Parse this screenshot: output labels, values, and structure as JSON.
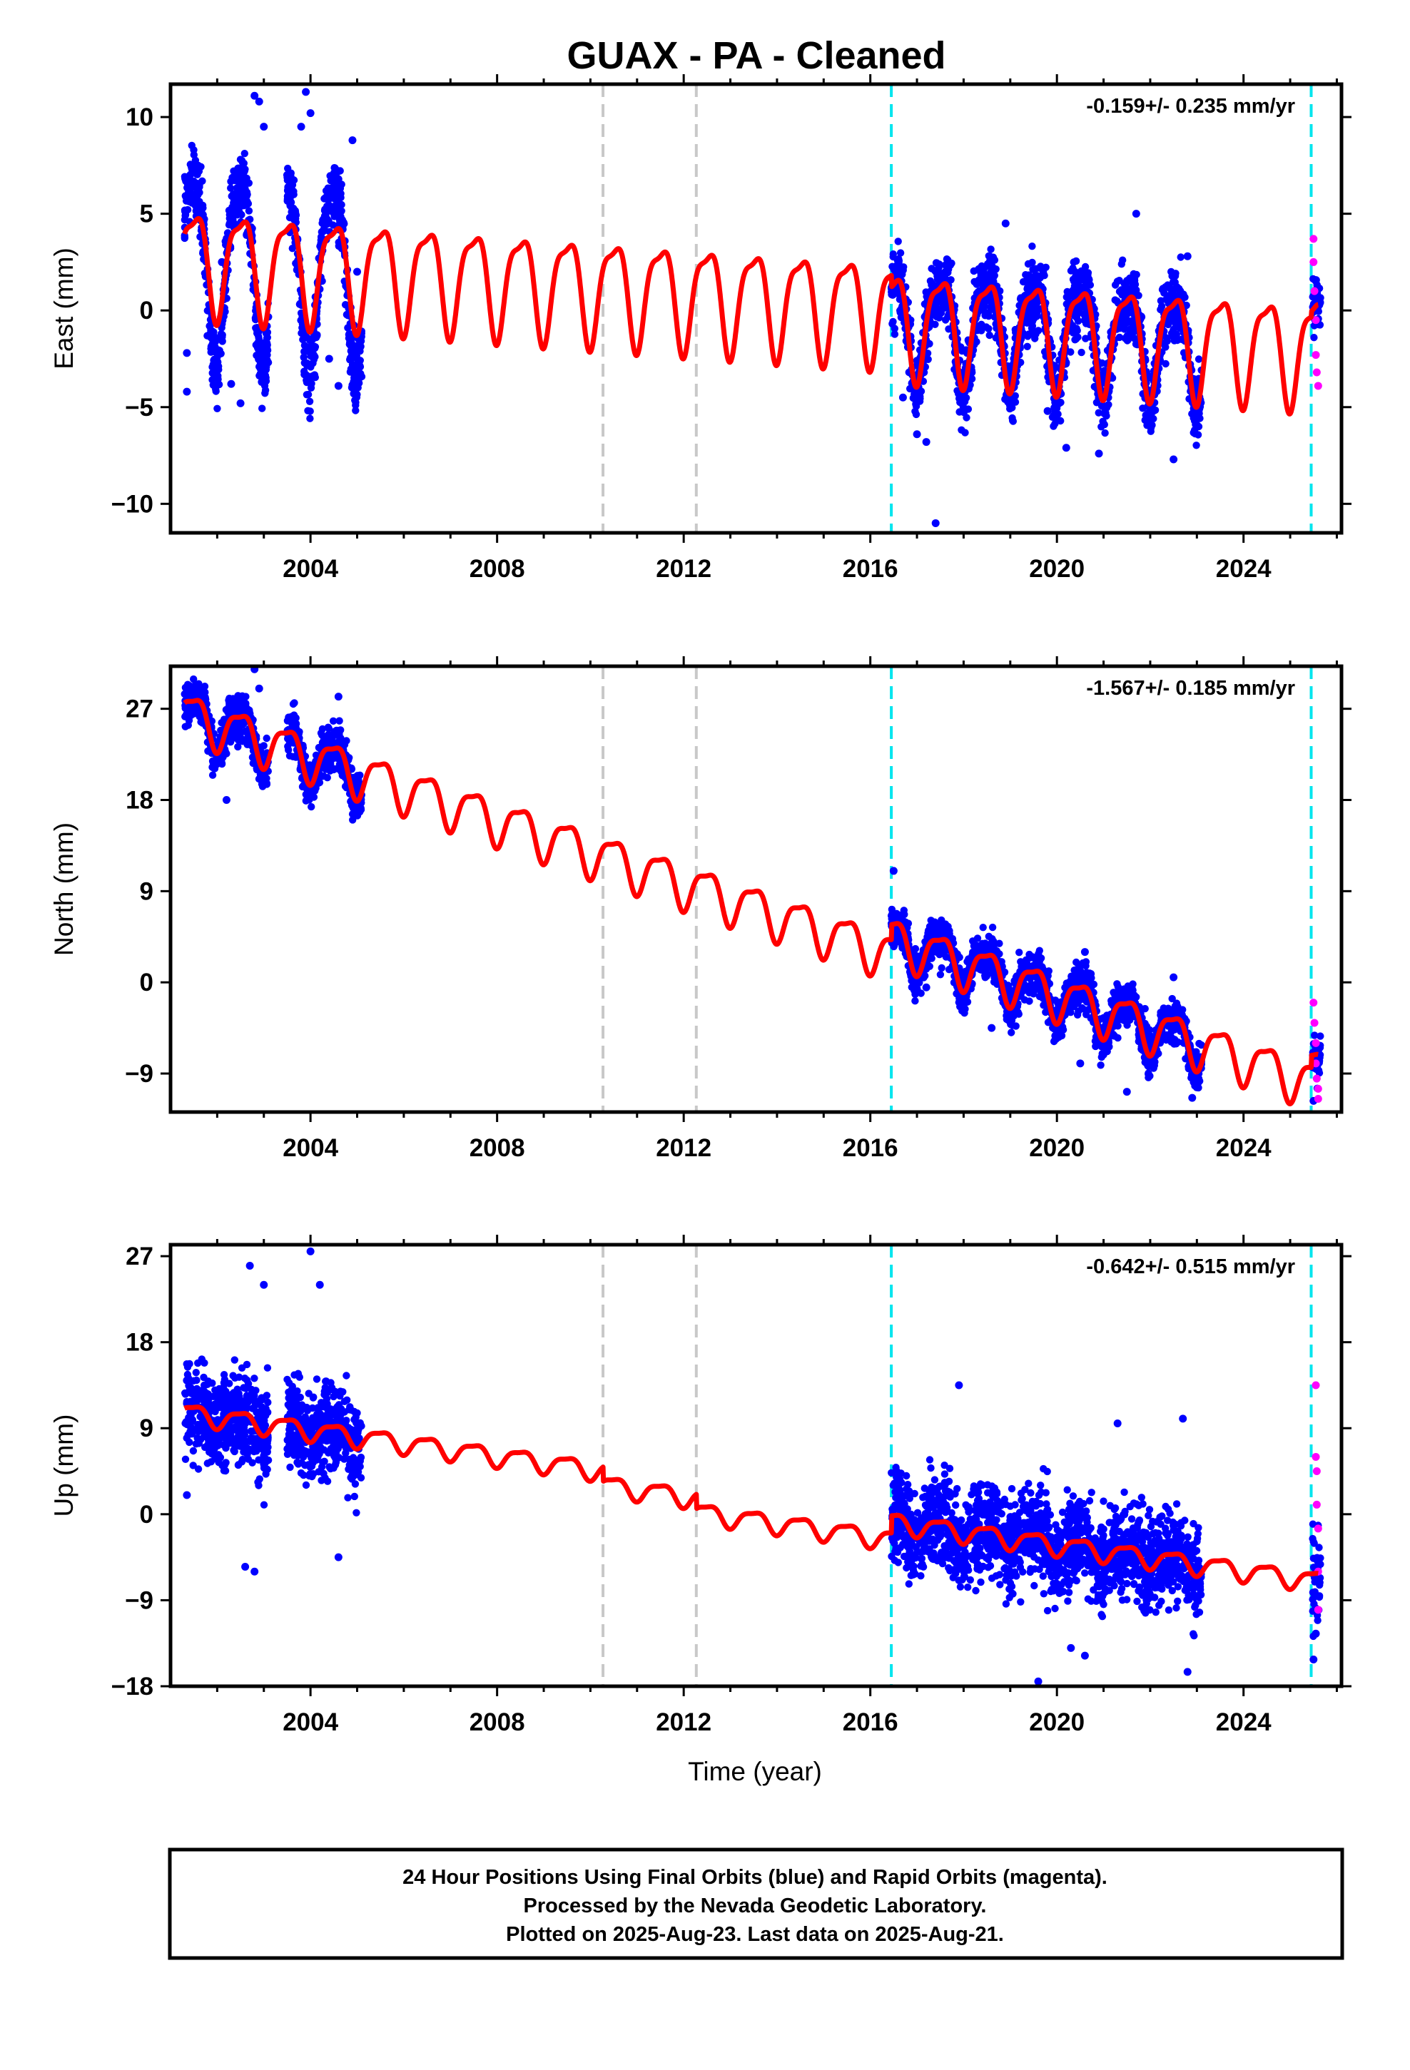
{
  "title": "GUAX  - PA - Cleaned",
  "xlabel": "Time (year)",
  "caption": [
    "24 Hour Positions Using Final Orbits (blue) and Rapid Orbits (magenta).",
    "Processed by the Nevada Geodetic Laboratory.",
    "Plotted on 2025-Aug-23. Last data on 2025-Aug-21."
  ],
  "colors": {
    "final_orbits": "#0000ff",
    "rapid_orbits": "#ff00ff",
    "model": "#ff0000",
    "equipment_change": "#c8c8c8",
    "station_event": "#00e5ee"
  },
  "chart_data": [
    {
      "type": "scatter",
      "ylabel": "East (mm)",
      "rate": "-0.159+/- 0.235 mm/yr",
      "xlim": [
        2001.0,
        2026.1
      ],
      "ylim": [
        -11.5,
        11.7
      ],
      "xticks": [
        "2004",
        "2008",
        "2012",
        "2016",
        "2020",
        "2024"
      ],
      "yticks": [
        "10",
        "5",
        "0",
        "−5",
        "−10"
      ],
      "ytick_values": [
        10,
        5,
        0,
        -5,
        -10
      ],
      "vlines_gray": [
        2010.27,
        2012.27
      ],
      "vlines_cyan": [
        2016.45,
        2025.45
      ],
      "data_spans": [
        [
          2001.3,
          2002.2
        ],
        [
          2002.1,
          2003.1
        ],
        [
          2003.5,
          2005.1
        ],
        [
          2016.45,
          2023.1
        ],
        [
          2025.48,
          2025.65
        ]
      ],
      "series": [
        {
          "name": "Final orbits (blue)",
          "points": [
            [
              2001.35,
              -4.2
            ],
            [
              2001.35,
              -2.2
            ],
            [
              2002.1,
              2.5
            ],
            [
              2002.3,
              -3.8
            ],
            [
              2002.5,
              -4.8
            ],
            [
              2002.8,
              11.1
            ],
            [
              2002.9,
              10.8
            ],
            [
              2003.0,
              9.5
            ],
            [
              2003.5,
              7.0
            ],
            [
              2003.8,
              9.5
            ],
            [
              2003.9,
              11.3
            ],
            [
              2004.0,
              10.2
            ],
            [
              2004.4,
              -2.5
            ],
            [
              2004.6,
              -3.9
            ],
            [
              2004.9,
              8.8
            ],
            [
              2005.0,
              2.0
            ],
            [
              2016.7,
              -4.5
            ],
            [
              2017.0,
              -6.4
            ],
            [
              2017.2,
              -6.8
            ],
            [
              2017.4,
              -11.0
            ],
            [
              2018.9,
              4.5
            ],
            [
              2019.8,
              -5.2
            ],
            [
              2020.2,
              -7.1
            ],
            [
              2020.9,
              -7.4
            ],
            [
              2021.7,
              5.0
            ],
            [
              2022.5,
              -7.7
            ],
            [
              2022.8,
              2.8
            ]
          ]
        },
        {
          "name": "Rapid orbits (magenta)",
          "points": [
            [
              2025.5,
              3.7
            ],
            [
              2025.5,
              2.5
            ],
            [
              2025.52,
              1.0
            ],
            [
              2025.55,
              -0.5
            ],
            [
              2025.55,
              -2.3
            ],
            [
              2025.57,
              -3.2
            ],
            [
              2025.6,
              -3.9
            ]
          ]
        },
        {
          "name": "Model fit (red)",
          "trend": {
            "start": [
              2001.3,
              2.7
            ],
            "end": [
              2025.6,
              -1.5
            ]
          },
          "annual_amplitude": 2.6,
          "offsets": [
            {
              "x": 2016.45,
              "dy": -0.6
            },
            {
              "x": 2025.45,
              "dy": 0.3
            }
          ]
        }
      ]
    },
    {
      "type": "scatter",
      "ylabel": "North (mm)",
      "rate": "-1.567+/- 0.185 mm/yr",
      "xlim": [
        2001.0,
        2026.1
      ],
      "ylim": [
        -12.8,
        31.2
      ],
      "xticks": [
        "2004",
        "2008",
        "2012",
        "2016",
        "2020",
        "2024"
      ],
      "yticks": [
        "27",
        "18",
        "9",
        "0",
        "−9"
      ],
      "ytick_values": [
        27,
        18,
        9,
        0,
        -9
      ],
      "vlines_gray": [
        2010.27,
        2012.27
      ],
      "vlines_cyan": [
        2016.45,
        2025.45
      ],
      "data_spans": [
        [
          2001.3,
          2002.2
        ],
        [
          2002.1,
          2003.1
        ],
        [
          2003.5,
          2005.1
        ],
        [
          2016.45,
          2023.1
        ],
        [
          2025.48,
          2025.65
        ]
      ],
      "series": [
        {
          "name": "Final orbits (blue)",
          "points": [
            [
              2001.35,
              28.5
            ],
            [
              2002.2,
              18.0
            ],
            [
              2002.8,
              30.9
            ],
            [
              2002.9,
              29.0
            ],
            [
              2004.0,
              19.8
            ],
            [
              2004.6,
              28.2
            ],
            [
              2004.9,
              17.6
            ],
            [
              2016.5,
              11.0
            ],
            [
              2017.2,
              -0.5
            ],
            [
              2018.6,
              -4.5
            ],
            [
              2020.5,
              -8.0
            ],
            [
              2020.6,
              3.0
            ],
            [
              2021.5,
              -10.8
            ],
            [
              2022.5,
              0.5
            ],
            [
              2022.9,
              -11.4
            ],
            [
              2025.5,
              -11.7
            ]
          ]
        },
        {
          "name": "Rapid orbits (magenta)",
          "points": [
            [
              2025.5,
              -2.0
            ],
            [
              2025.52,
              -4.0
            ],
            [
              2025.55,
              -6.0
            ],
            [
              2025.55,
              -8.0
            ],
            [
              2025.57,
              -9.5
            ],
            [
              2025.6,
              -10.5
            ],
            [
              2025.6,
              -11.5
            ]
          ]
        },
        {
          "name": "Model fit (red)",
          "trend": {
            "start": [
              2001.3,
              26.5
            ],
            "end": [
              2025.6,
              -11.6
            ]
          },
          "annual_amplitude": 2.2,
          "offsets": [
            {
              "x": 2016.45,
              "dy": 1.5
            },
            {
              "x": 2025.45,
              "dy": 1.2
            }
          ]
        }
      ]
    },
    {
      "type": "scatter",
      "ylabel": "Up (mm)",
      "rate": "-0.642+/- 0.515 mm/yr",
      "xlim": [
        2001.0,
        2026.1
      ],
      "ylim": [
        -18.0,
        28.2
      ],
      "xticks": [
        "2004",
        "2008",
        "2012",
        "2016",
        "2020",
        "2024"
      ],
      "yticks": [
        "27",
        "18",
        "9",
        "0",
        "−9",
        "−18"
      ],
      "ytick_values": [
        27,
        18,
        9,
        0,
        -9,
        -18
      ],
      "vlines_gray": [
        2010.27,
        2012.27
      ],
      "vlines_cyan": [
        2016.45,
        2025.45
      ],
      "data_spans": [
        [
          2001.3,
          2002.2
        ],
        [
          2002.1,
          2003.1
        ],
        [
          2003.5,
          2005.1
        ],
        [
          2016.45,
          2023.1
        ],
        [
          2025.48,
          2025.65
        ]
      ],
      "series": [
        {
          "name": "Final orbits (blue)",
          "points": [
            [
              2001.35,
              2.0
            ],
            [
              2001.35,
              14.0
            ],
            [
              2002.6,
              -5.5
            ],
            [
              2002.7,
              26.0
            ],
            [
              2002.8,
              -6.0
            ],
            [
              2003.0,
              24.0
            ],
            [
              2004.0,
              27.5
            ],
            [
              2004.2,
              24.0
            ],
            [
              2004.6,
              -4.5
            ],
            [
              2017.9,
              13.5
            ],
            [
              2019.6,
              -17.5
            ],
            [
              2020.3,
              -14.0
            ],
            [
              2020.6,
              -14.8
            ],
            [
              2021.3,
              9.5
            ],
            [
              2022.7,
              10.0
            ],
            [
              2022.8,
              -16.5
            ],
            [
              2025.5,
              -15.2
            ],
            [
              2025.55,
              -12.5
            ]
          ]
        },
        {
          "name": "Rapid orbits (magenta)",
          "points": [
            [
              2025.55,
              13.5
            ],
            [
              2025.55,
              6.0
            ],
            [
              2025.57,
              4.5
            ],
            [
              2025.57,
              1.0
            ],
            [
              2025.6,
              -1.5
            ],
            [
              2025.6,
              -6.0
            ],
            [
              2025.6,
              -10.0
            ]
          ]
        },
        {
          "name": "Model fit (red)",
          "trend": {
            "start": [
              2001.3,
              10.6
            ],
            "end": [
              2025.6,
              -5.8
            ]
          },
          "annual_amplitude": 1.0,
          "offsets": [
            {
              "x": 2010.27,
              "dy": -1.5
            },
            {
              "x": 2012.27,
              "dy": -1.5
            },
            {
              "x": 2016.45,
              "dy": 1.8
            }
          ]
        }
      ]
    }
  ]
}
